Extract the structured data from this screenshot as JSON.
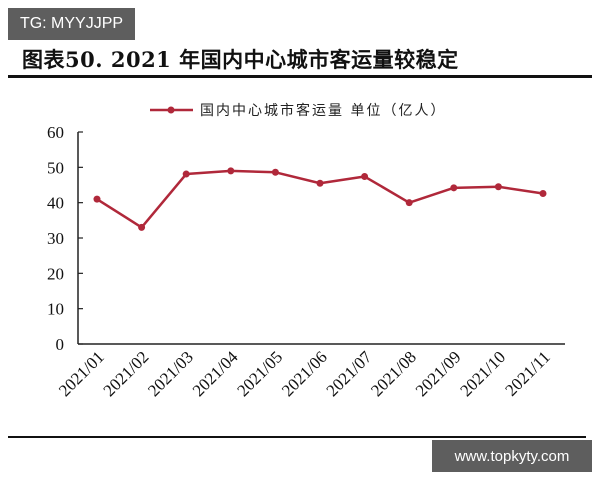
{
  "watermark_top": "TG: MYYJJPP",
  "watermark_bottom": "www.topkyty.com",
  "figure_title": "图表50. 2021 年国内中心城市客运量较稳定",
  "colors": {
    "series": "#B0283A",
    "axis": "#222222",
    "badge_bg": "#5e5e5e"
  },
  "chart_data": {
    "type": "line",
    "title": "2021 年国内中心城市客运量较稳定",
    "xlabel": "",
    "ylabel": "",
    "ylim": [
      0,
      60
    ],
    "yticks": [
      0,
      10,
      20,
      30,
      40,
      50,
      60
    ],
    "grid": false,
    "legend_position": "top",
    "categories": [
      "2021/01",
      "2021/02",
      "2021/03",
      "2021/04",
      "2021/05",
      "2021/06",
      "2021/07",
      "2021/08",
      "2021/09",
      "2021/10",
      "2021/11"
    ],
    "series": [
      {
        "name": "国内中心城市客运量 单位（亿人）",
        "values": [
          41.0,
          33.0,
          48.1,
          49.0,
          48.6,
          45.5,
          47.4,
          40.0,
          44.2,
          44.5,
          42.6
        ]
      }
    ]
  }
}
